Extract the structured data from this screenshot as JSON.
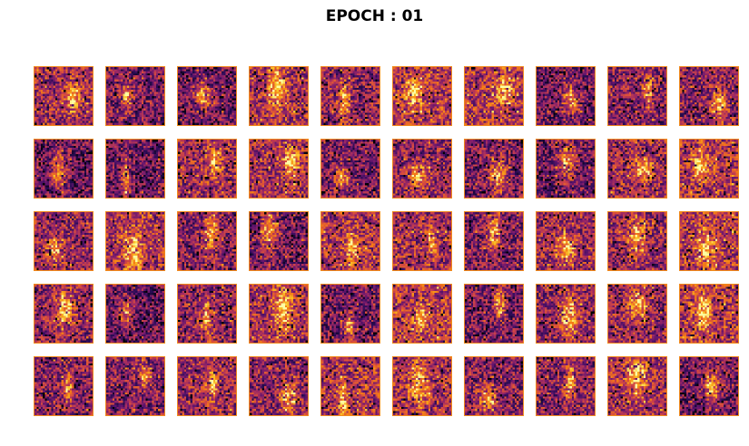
{
  "title": "EPOCH : 01",
  "grid": {
    "rows": 5,
    "cols": 10,
    "cells_per_side": 28
  },
  "colormap": "inferno",
  "colors": {
    "frame": "#f08a1c",
    "background": "#ffffff"
  }
}
